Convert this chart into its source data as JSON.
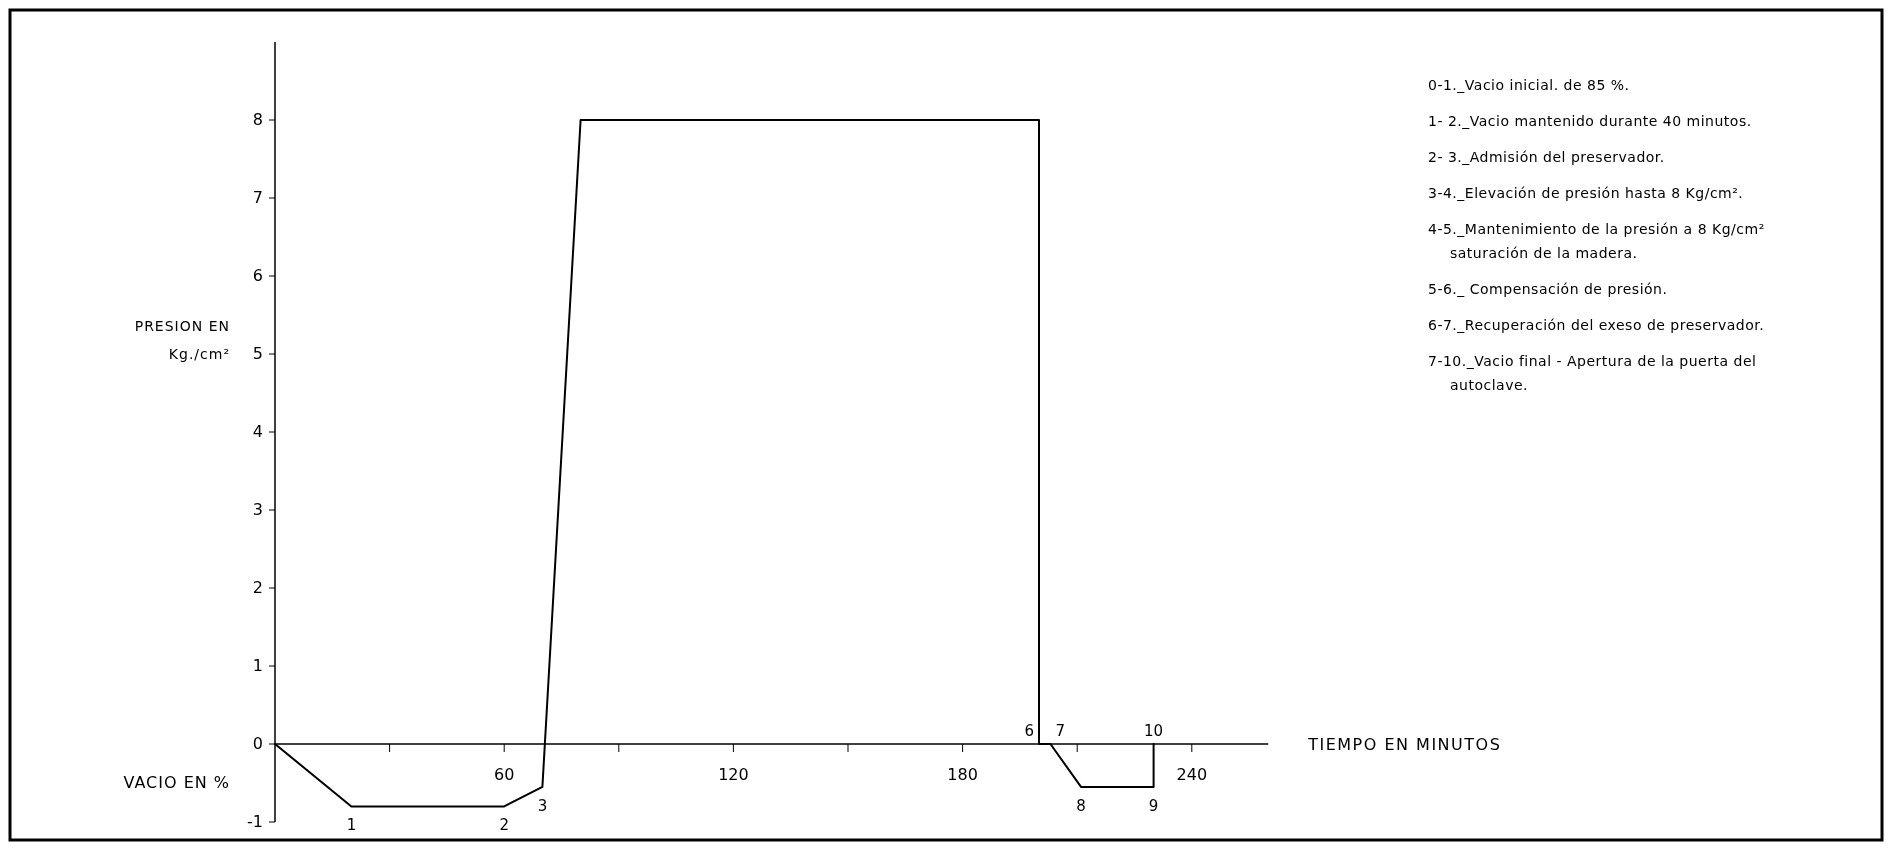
{
  "chart_data": {
    "type": "line",
    "xlabel": "TIEMPO EN MINUTOS",
    "ylabel": "PRESION EN Kg./cm²",
    "x": [
      0,
      20,
      60,
      70,
      80,
      200,
      200,
      203,
      211,
      230,
      230
    ],
    "series": [
      {
        "color": "#000000",
        "values": [
          0,
          -0.8,
          -0.8,
          -0.55,
          8,
          8,
          0,
          0,
          -0.55,
          -0.55,
          0
        ]
      }
    ],
    "xlim": [
      0,
      260
    ],
    "xticks": [
      {
        "value": 30,
        "label": null
      },
      60,
      {
        "value": 90,
        "label": null
      },
      120,
      {
        "value": 150,
        "label": null
      },
      180,
      {
        "value": 210,
        "label": null
      },
      240
    ],
    "ylim": [
      -1,
      9
    ],
    "yticks": [
      -1,
      0,
      1,
      2,
      3,
      4,
      5,
      6,
      7,
      8
    ],
    "grid": false,
    "marker": "none",
    "line_style": "solid",
    "annotations": [
      "VACIO EN %",
      {
        "text": "1",
        "x": 20,
        "y": -0.8
      },
      {
        "text": "2",
        "x": 60,
        "y": -0.8
      },
      {
        "text": "3",
        "x": 70,
        "y": -0.55
      },
      {
        "text": "6",
        "x": 200,
        "y": 0
      },
      {
        "text": "7",
        "x": 203,
        "y": 0
      },
      {
        "text": "8",
        "x": 211,
        "y": -0.55
      },
      {
        "text": "9",
        "x": 230,
        "y": -0.55
      },
      {
        "text": "10",
        "x": 230,
        "y": 0
      },
      "0-1._Vacio inicial. de 85 %.",
      "1- 2._Vacio mantenido durante 40 minutos.",
      "2- 3._Admisión del preservador.",
      "3-4._Elevación de presión hasta 8 Kg/cm².",
      "4-5._Mantenimiento de la presión a 8 Kg/cm² saturación de la madera.",
      "5-6._ Compensación de presión.",
      "6-7._Recuperación del exeso de preservador.",
      "7-10._Vacio final - Apertura de la puerta del autoclave."
    ]
  }
}
